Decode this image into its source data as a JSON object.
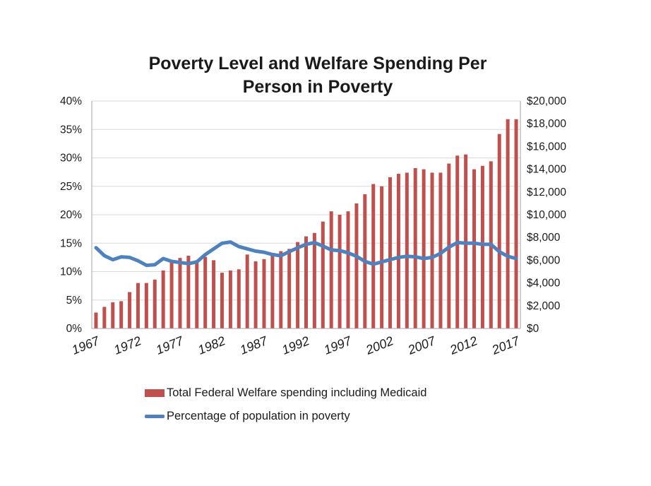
{
  "colors": {
    "bars": "#c0504d",
    "line": "#4f81bd",
    "grid": "#d9d9d9",
    "axis": "#a6a6a6"
  },
  "chart_data": {
    "type": "bar",
    "title_line1": "Poverty Level and Welfare Spending Per",
    "title_line2": "Person in Poverty",
    "xlabel": "",
    "ylabel_left": "",
    "ylabel_right": "",
    "x": [
      1967,
      1968,
      1969,
      1970,
      1971,
      1972,
      1973,
      1974,
      1975,
      1976,
      1977,
      1978,
      1979,
      1980,
      1981,
      1982,
      1983,
      1984,
      1985,
      1986,
      1987,
      1988,
      1989,
      1990,
      1991,
      1992,
      1993,
      1994,
      1995,
      1996,
      1997,
      1998,
      1999,
      2000,
      2001,
      2002,
      2003,
      2004,
      2005,
      2006,
      2007,
      2008,
      2009,
      2010,
      2011,
      2012,
      2013,
      2014,
      2015,
      2016,
      2017
    ],
    "x_tick_labels": [
      "1967",
      "1972",
      "1977",
      "1982",
      "1987",
      "1992",
      "1997",
      "2002",
      "2007",
      "2012",
      "2017"
    ],
    "left_axis": {
      "ylim": [
        0,
        40
      ],
      "tick_labels": [
        "0%",
        "5%",
        "10%",
        "15%",
        "20%",
        "25%",
        "30%",
        "35%",
        "40%"
      ]
    },
    "right_axis": {
      "ylim": [
        0,
        20000
      ],
      "tick_labels": [
        "$0",
        "$2,000",
        "$4,000",
        "$6,000",
        "$8,000",
        "$10,000",
        "$12,000",
        "$14,000",
        "$16,000",
        "$18,000",
        "$20,000"
      ]
    },
    "grid": true,
    "legend_position": "bottom",
    "series": [
      {
        "name": "Total Federal Welfare spending including Medicaid",
        "type": "bar",
        "axis": "right",
        "values": [
          1400,
          1900,
          2300,
          2400,
          3200,
          4000,
          4000,
          4300,
          5100,
          5800,
          6200,
          6400,
          6000,
          6300,
          6000,
          4900,
          5100,
          5200,
          6500,
          5900,
          6100,
          6500,
          6800,
          7000,
          7600,
          8100,
          8400,
          9400,
          10300,
          10000,
          10300,
          11000,
          11800,
          12700,
          12500,
          13300,
          13600,
          13700,
          14100,
          14000,
          13700,
          13700,
          14500,
          15200,
          15300,
          14000,
          14300,
          14700,
          17100,
          18400,
          18400
        ]
      },
      {
        "name": "Percentage of population in poverty",
        "type": "line",
        "axis": "left",
        "values": [
          14.2,
          12.8,
          12.1,
          12.6,
          12.5,
          11.9,
          11.1,
          11.2,
          12.3,
          11.8,
          11.6,
          11.4,
          11.7,
          13.0,
          14.0,
          15.0,
          15.2,
          14.4,
          14.0,
          13.6,
          13.4,
          13.0,
          12.8,
          13.5,
          14.2,
          14.8,
          15.1,
          14.5,
          13.8,
          13.7,
          13.3,
          12.7,
          11.8,
          11.3,
          11.7,
          12.1,
          12.5,
          12.7,
          12.6,
          12.3,
          12.5,
          13.2,
          14.3,
          15.1,
          15.0,
          15.0,
          14.8,
          14.8,
          13.5,
          12.7,
          12.3
        ]
      }
    ]
  }
}
